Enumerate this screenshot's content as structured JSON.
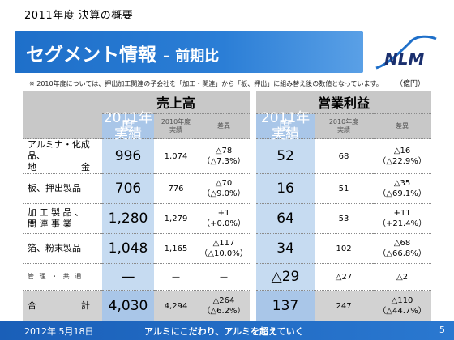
{
  "header": {
    "top_label": "2011年度  決算の概要",
    "title": "セグメント情報",
    "title_suffix": "– 前期比",
    "logo_text": "NLM"
  },
  "note": "※  2010年度については、押出加工関連の子会社を「加工・関連」から「板、押出」に組み替え後の数値となっています。",
  "unit": "（億円）",
  "table": {
    "groups": [
      "売上高",
      "営業利益"
    ],
    "sub_headers": {
      "current": "2011年度\n実績",
      "previous": "2010年度\n実績",
      "diff": "差異"
    },
    "rows": [
      {
        "label_line1": "アルミナ・化成品、",
        "label_line2": "地　　　　　金",
        "sales_2011": "996",
        "sales_2010": "1,074",
        "sales_diff": "△78",
        "sales_diff_pct": "（△7.3%）",
        "op_2011": "52",
        "op_2010": "68",
        "op_diff": "△16",
        "op_diff_pct": "（△22.9%）"
      },
      {
        "label_line1": "板、押出製品",
        "label_line2": "",
        "sales_2011": "706",
        "sales_2010": "776",
        "sales_diff": "△70",
        "sales_diff_pct": "（△9.0%）",
        "op_2011": "16",
        "op_2010": "51",
        "op_diff": "△35",
        "op_diff_pct": "（△69.1%）"
      },
      {
        "label_line1": "加 工 製 品 、",
        "label_line2": "関 連 事 業",
        "sales_2011": "1,280",
        "sales_2010": "1,279",
        "sales_diff": "+1",
        "sales_diff_pct": "（+0.0%）",
        "op_2011": "64",
        "op_2010": "53",
        "op_diff": "+11",
        "op_diff_pct": "（+21.4%）"
      },
      {
        "label_line1": "箔、粉末製品",
        "label_line2": "",
        "sales_2011": "1,048",
        "sales_2010": "1,165",
        "sales_diff": "△117",
        "sales_diff_pct": "（△10.0%）",
        "op_2011": "34",
        "op_2010": "102",
        "op_diff": "△68",
        "op_diff_pct": "（△66.8%）"
      }
    ],
    "management": {
      "label": "管 理 ・ 共 通",
      "sales_2011": "—",
      "sales_2010": "—",
      "sales_diff": "—",
      "op_2011": "△29",
      "op_2010": "△27",
      "op_diff": "△2"
    },
    "total": {
      "label": "合　　　　　計",
      "sales_2011": "4,030",
      "sales_2010": "4,294",
      "sales_diff": "△264",
      "sales_diff_pct": "（△6.2%）",
      "op_2011": "137",
      "op_2010": "247",
      "op_diff": "△110",
      "op_diff_pct": "（△44.7%）"
    }
  },
  "footer": {
    "date": "2012年 5月18日",
    "slogan": "アルミにこだわり、アルミを超えていく",
    "page": "5"
  },
  "colors": {
    "brand_blue": "#1e6fc9",
    "current_year_fill": "#c6dbf1",
    "header_gray": "#c8c8c8"
  }
}
